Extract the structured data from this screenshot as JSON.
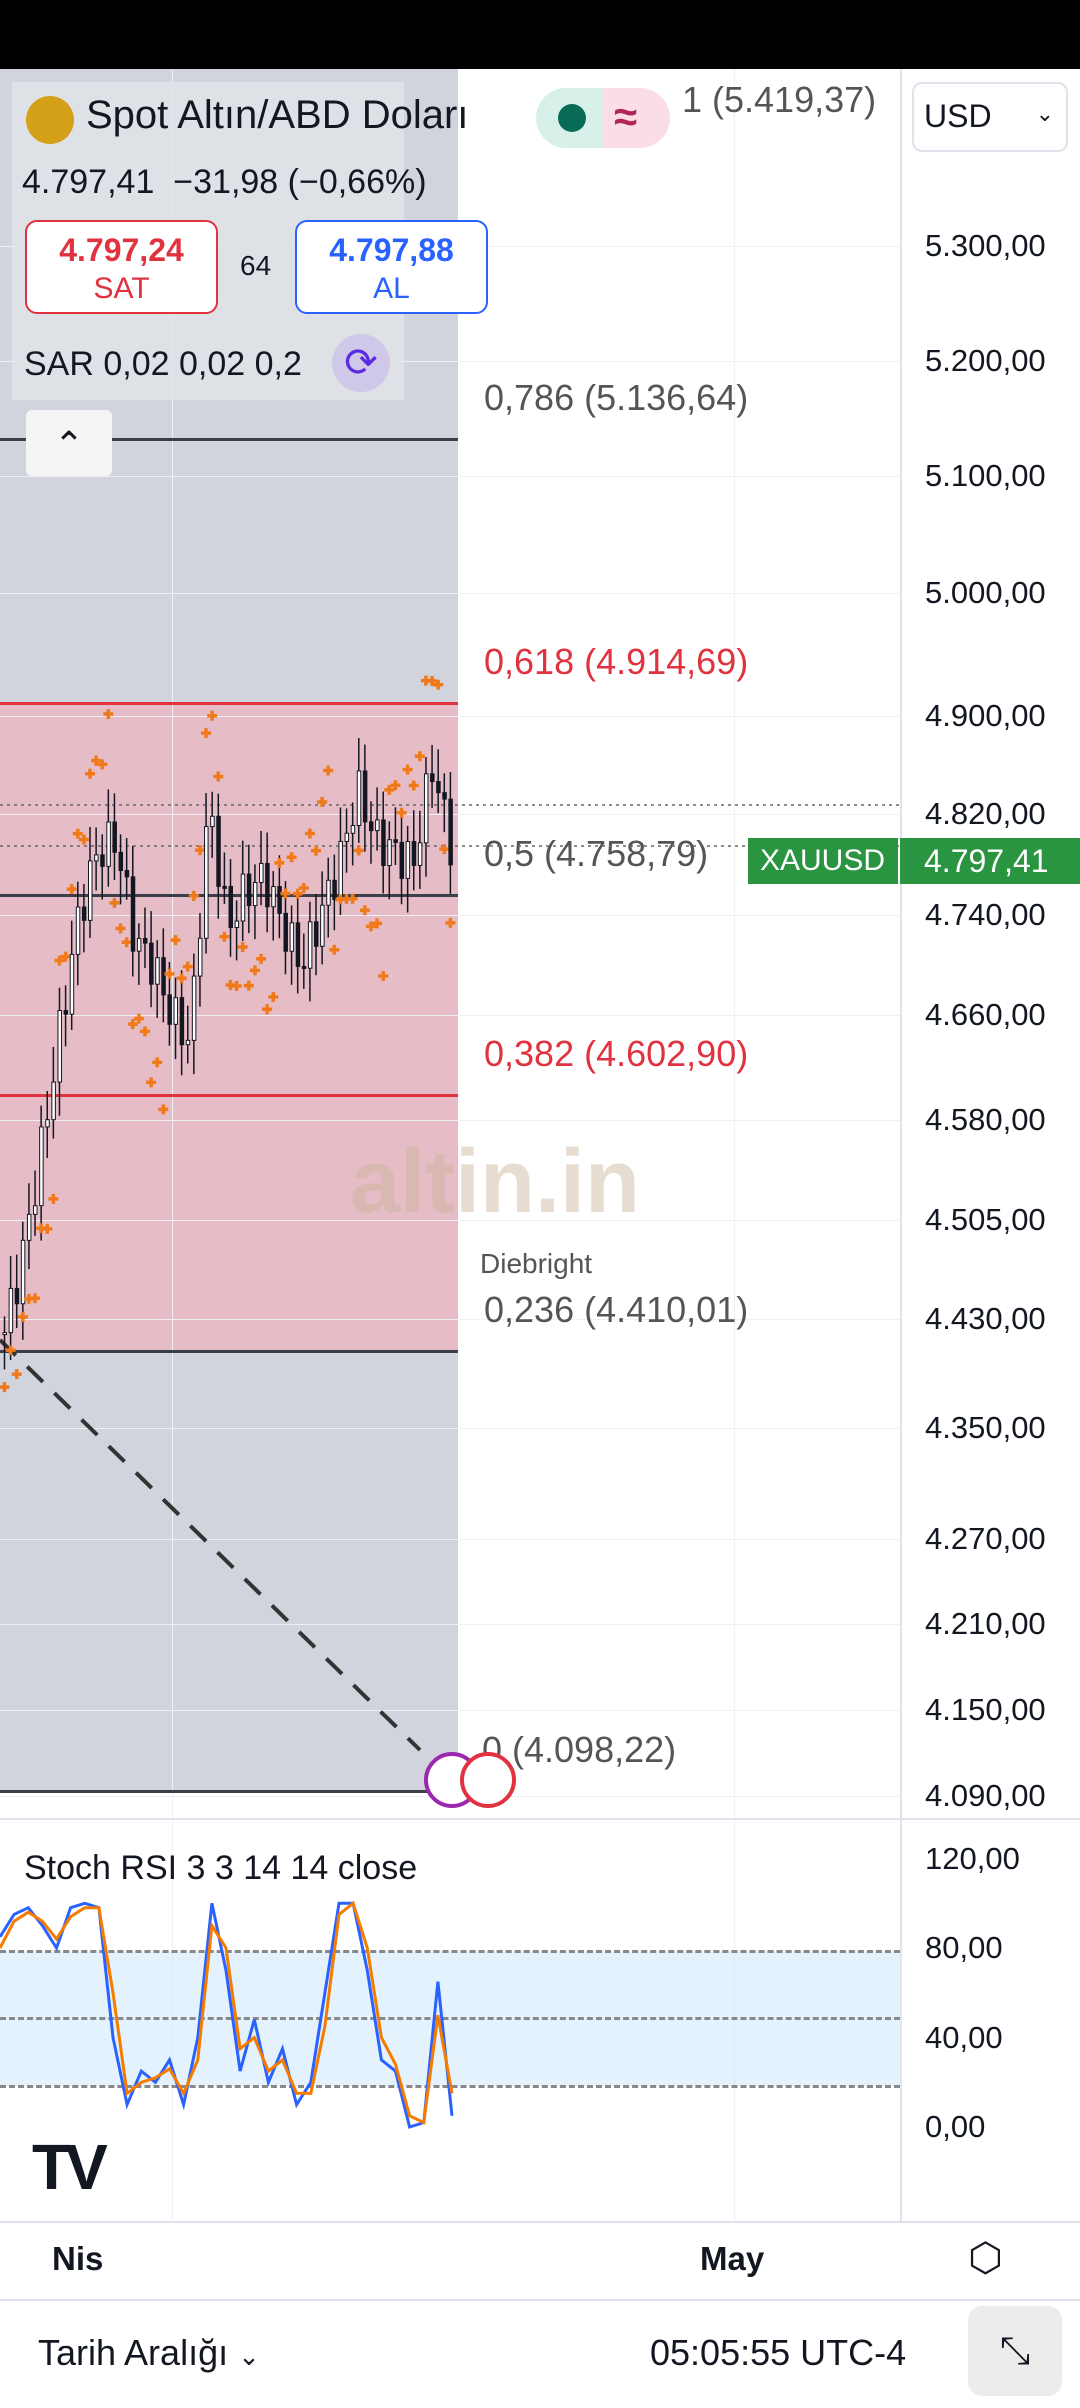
{
  "header": {
    "title": "Spot Altın/ABD Doları",
    "last": "4.797,41",
    "change": "−31,98 (−0,66%)",
    "sell_price": "4.797,24",
    "sell_label": "SAT",
    "spread": "64",
    "buy_price": "4.797,88",
    "buy_label": "AL",
    "indicator": "SAR 0,02 0,02 0,2",
    "currency": "USD"
  },
  "colors": {
    "sell": "#e0323f",
    "buy": "#2962ff",
    "up": "#2a9540",
    "fib_red": "#e0323f",
    "sar": "#f07a1a",
    "k": "#2962ff",
    "d": "#f57c00"
  },
  "fib": [
    {
      "label": "1 (5.419,37)",
      "color": "#555"
    },
    {
      "label": "0,786 (5.136,64)",
      "color": "#555"
    },
    {
      "label": "0,618 (4.914,69)",
      "color": "#e0323f"
    },
    {
      "label": "0,5 (4.758,79)",
      "color": "#555"
    },
    {
      "label": "0,382 (4.602,90)",
      "color": "#e0323f"
    },
    {
      "label": "0,236 (4.410,01)",
      "color": "#555"
    },
    {
      "label": "0 (4.098,22)",
      "color": "#555"
    }
  ],
  "price_axis": [
    "5.300,00",
    "5.200,00",
    "5.100,00",
    "5.000,00",
    "4.900,00",
    "4.820,00",
    "4.740,00",
    "4.660,00",
    "4.580,00",
    "4.505,00",
    "4.430,00",
    "4.350,00",
    "4.270,00",
    "4.210,00",
    "4.150,00",
    "4.090,00"
  ],
  "badge": {
    "symbol": "XAUUSD",
    "price": "4.797,41"
  },
  "watermark": "altin.in",
  "drawing_author": "Diebright",
  "stoch": {
    "title": "Stoch RSI 3 3 14 14 close",
    "axis": [
      "120,00",
      "80,00",
      "40,00",
      "0,00"
    ]
  },
  "time_axis": [
    "Nis",
    "May"
  ],
  "footer": {
    "range": "Tarih Aralığı",
    "clock": "05:05:55 UTC-4"
  },
  "chart_data": {
    "type": "candlestick",
    "scale": "log",
    "ylim": [
      4090,
      5300
    ],
    "price_path": [
      4420,
      4480,
      4560,
      4650,
      4740,
      4790,
      4800,
      4720,
      4700,
      4660,
      4640,
      4830,
      4730,
      4760,
      4770,
      4730,
      4700,
      4740,
      4780,
      4840,
      4800,
      4790,
      4780,
      4860,
      4797.41
    ],
    "stoch_k": [
      85,
      95,
      98,
      90,
      80,
      98,
      100,
      98,
      40,
      10,
      25,
      20,
      30,
      10,
      40,
      100,
      70,
      25,
      48,
      20,
      35,
      10,
      20,
      60,
      100,
      100,
      70,
      30,
      25,
      0,
      2,
      65,
      5
    ],
    "stoch_d": [
      80,
      92,
      96,
      92,
      84,
      94,
      98,
      98,
      60,
      15,
      20,
      22,
      26,
      15,
      30,
      90,
      80,
      35,
      40,
      25,
      30,
      15,
      15,
      45,
      95,
      100,
      80,
      40,
      28,
      5,
      2,
      50,
      15
    ]
  }
}
